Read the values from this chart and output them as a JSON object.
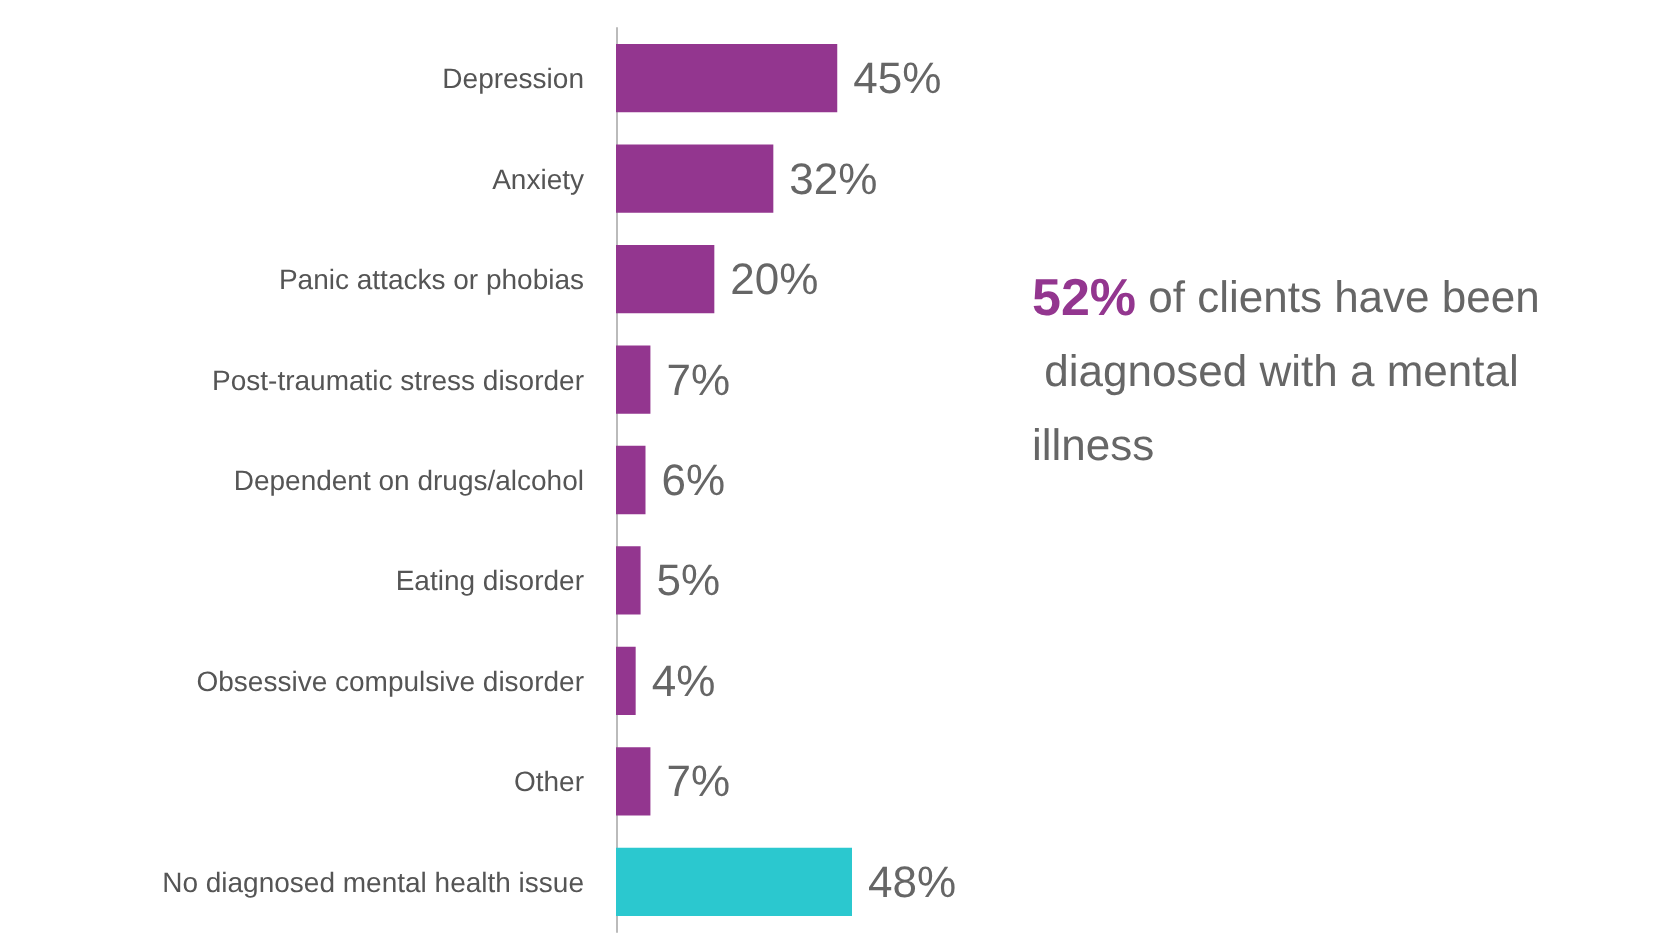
{
  "chart_data": {
    "type": "bar",
    "orientation": "horizontal",
    "categories": [
      "Depression",
      "Anxiety",
      "Panic attacks or phobias",
      "Post-traumatic stress disorder",
      "Dependent on drugs/alcohol",
      "Eating disorder",
      "Obsessive compulsive disorder",
      "Other",
      "No diagnosed mental health issue"
    ],
    "values": [
      45,
      32,
      20,
      7,
      6,
      5,
      4,
      7,
      48
    ],
    "colors": [
      "#93368f",
      "#93368f",
      "#93368f",
      "#93368f",
      "#93368f",
      "#93368f",
      "#93368f",
      "#93368f",
      "#2bc8cf"
    ],
    "value_labels": [
      "45%",
      "32%",
      "20%",
      "7%",
      "6%",
      "5%",
      "4%",
      "7%",
      "48%"
    ],
    "annotations": [
      "52% of clients have been diagnosed with a mental illness"
    ]
  }
}
